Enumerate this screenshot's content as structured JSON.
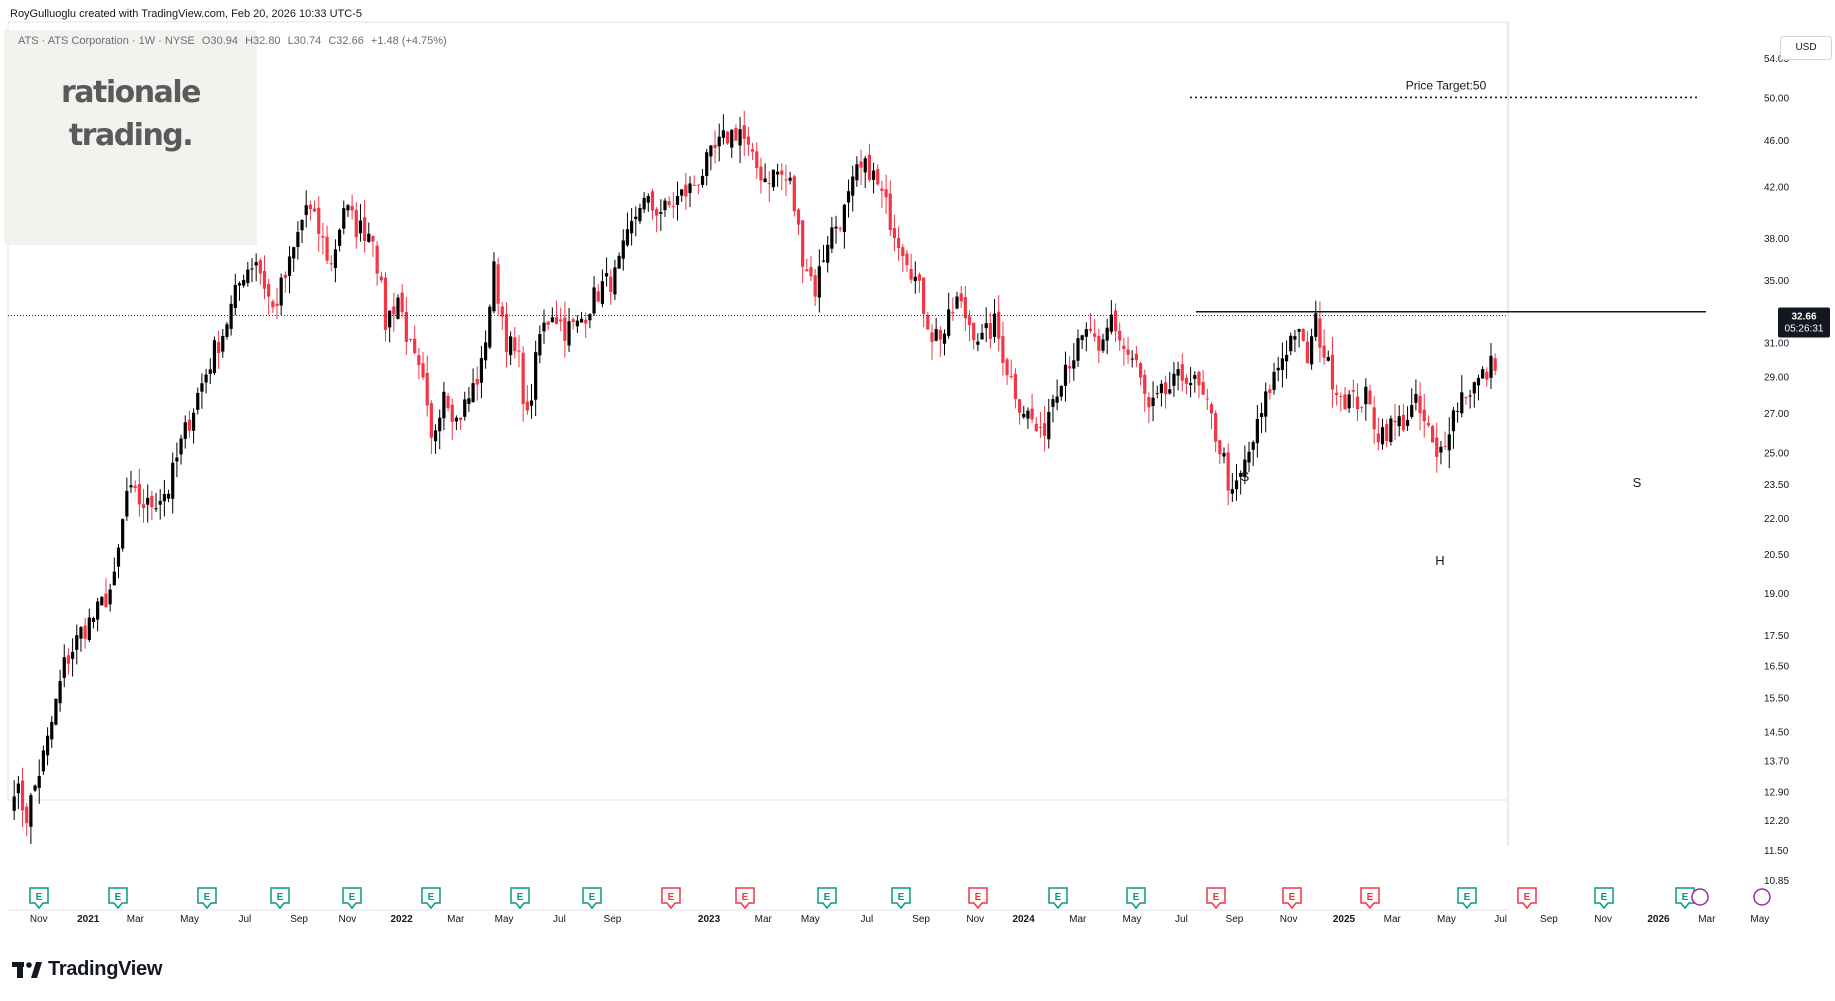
{
  "header": {
    "author_line": "RoyGulluoglu created with TradingView.com, Feb 20, 2026 10:33 UTC-5"
  },
  "symbol": {
    "description": "ATS · ATS Corporation · 1W · NYSE",
    "open": "O30.94",
    "high": "H32.80",
    "low": "L30.74",
    "close": "C32.66",
    "change": "+1.48 (+4.75%)"
  },
  "watermark": {
    "line1": "rationale",
    "line2": "trading."
  },
  "currency": "USD",
  "price_badge": {
    "price": "32.66",
    "countdown": "05:26:31"
  },
  "annotations": {
    "price_target": "Price Target:50",
    "left_shoulder": "S",
    "head": "H",
    "right_shoulder": "S"
  },
  "brand": {
    "name": "TradingView"
  },
  "colors": {
    "up": "#000000",
    "down": "#f23645",
    "earnings_green": "#089981",
    "earnings_red": "#f23645",
    "dividend": "#9c27b0",
    "grid": "#f0f3fa",
    "text": "#131722"
  },
  "chart_data": {
    "type": "candlestick",
    "yscale": "log",
    "ylim": [
      10.5,
      56
    ],
    "y_ticks": [
      "54.00",
      "50.00",
      "46.00",
      "42.00",
      "38.00",
      "35.00",
      "31.00",
      "29.00",
      "27.00",
      "25.00",
      "23.50",
      "22.00",
      "20.50",
      "19.00",
      "17.50",
      "16.50",
      "15.50",
      "14.50",
      "13.70",
      "12.90",
      "12.20",
      "11.50",
      "10.85"
    ],
    "x_ticks": [
      "Nov",
      "2021",
      "Mar",
      "May",
      "Jul",
      "Sep",
      "Nov",
      "2022",
      "Mar",
      "May",
      "Jul",
      "Sep",
      "2023",
      "Mar",
      "May",
      "Jul",
      "Sep",
      "Nov",
      "2024",
      "Mar",
      "May",
      "Jul",
      "Sep",
      "Nov",
      "2025",
      "Mar",
      "May",
      "Jul",
      "Sep",
      "Nov",
      "2026",
      "Mar",
      "May"
    ],
    "current_price": 32.66,
    "neckline": 32.9,
    "target": 50,
    "earnings_events": [
      "green",
      "green",
      "green",
      "green",
      "green",
      "green",
      "green",
      "green",
      "red",
      "red",
      "green",
      "green",
      "red",
      "green",
      "green",
      "red",
      "red",
      "red",
      "green",
      "red",
      "green",
      "green"
    ],
    "anchors": [
      [
        0,
        13.1
      ],
      [
        3,
        12.3
      ],
      [
        8,
        14.2
      ],
      [
        12,
        16.5
      ],
      [
        16,
        17.6
      ],
      [
        20,
        18.3
      ],
      [
        24,
        19.4
      ],
      [
        27,
        23.1
      ],
      [
        32,
        22.5
      ],
      [
        37,
        23.3
      ],
      [
        40,
        25.4
      ],
      [
        44,
        28.0
      ],
      [
        48,
        30.5
      ],
      [
        50,
        31.6
      ],
      [
        55,
        35.6
      ],
      [
        58,
        36.5
      ],
      [
        62,
        33.0
      ],
      [
        66,
        36.0
      ],
      [
        70,
        40.5
      ],
      [
        73,
        38.5
      ],
      [
        76,
        36.0
      ],
      [
        79,
        40.5
      ],
      [
        82,
        38.8
      ],
      [
        86,
        38.4
      ],
      [
        89,
        32.2
      ],
      [
        92,
        33.9
      ],
      [
        95,
        30.5
      ],
      [
        98,
        28.4
      ],
      [
        100,
        25.4
      ],
      [
        103,
        28.5
      ],
      [
        106,
        26.6
      ],
      [
        109,
        27.8
      ],
      [
        112,
        29.5
      ],
      [
        115,
        35.6
      ],
      [
        118,
        31.2
      ],
      [
        121,
        29.8
      ],
      [
        123,
        26.6
      ],
      [
        126,
        31.4
      ],
      [
        129,
        33.0
      ],
      [
        132,
        31.8
      ],
      [
        135,
        32.0
      ],
      [
        138,
        33.4
      ],
      [
        141,
        34.6
      ],
      [
        144,
        35.2
      ],
      [
        147,
        37.8
      ],
      [
        150,
        40.8
      ],
      [
        153,
        40.3
      ],
      [
        156,
        40.1
      ],
      [
        160,
        41.3
      ],
      [
        162,
        41.8
      ],
      [
        165,
        43.3
      ],
      [
        168,
        45.0
      ],
      [
        171,
        46.4
      ],
      [
        174,
        47.0
      ],
      [
        177,
        44.0
      ],
      [
        180,
        42.8
      ],
      [
        183,
        43.2
      ],
      [
        186,
        42.2
      ],
      [
        189,
        36.8
      ],
      [
        192,
        34.4
      ],
      [
        195,
        38.0
      ],
      [
        199,
        40.0
      ],
      [
        202,
        43.0
      ],
      [
        205,
        43.6
      ],
      [
        208,
        41.2
      ],
      [
        211,
        38.7
      ],
      [
        214,
        36.8
      ],
      [
        217,
        34.2
      ],
      [
        220,
        31.5
      ],
      [
        223,
        31.6
      ],
      [
        226,
        33.6
      ],
      [
        229,
        32.2
      ],
      [
        232,
        31.1
      ],
      [
        235,
        32.1
      ],
      [
        238,
        29.5
      ],
      [
        241,
        27.6
      ],
      [
        244,
        26.6
      ],
      [
        246,
        25.6
      ],
      [
        249,
        28.0
      ],
      [
        252,
        29.8
      ],
      [
        255,
        30.6
      ],
      [
        258,
        31.8
      ],
      [
        260,
        29.8
      ],
      [
        263,
        32.6
      ],
      [
        266,
        30.6
      ],
      [
        269,
        29.6
      ],
      [
        272,
        27.0
      ],
      [
        275,
        27.9
      ],
      [
        278,
        28.5
      ],
      [
        281,
        29.2
      ],
      [
        284,
        28.2
      ],
      [
        287,
        26.6
      ],
      [
        290,
        24.6
      ],
      [
        292,
        22.8
      ],
      [
        295,
        24.4
      ],
      [
        298,
        26.2
      ],
      [
        301,
        28.4
      ],
      [
        304,
        30.2
      ],
      [
        307,
        31.8
      ],
      [
        310,
        30.0
      ],
      [
        312,
        32.2
      ],
      [
        315,
        29.5
      ],
      [
        318,
        28.0
      ],
      [
        321,
        27.6
      ],
      [
        324,
        27.8
      ],
      [
        327,
        26.0
      ],
      [
        330,
        26.3
      ],
      [
        333,
        26.6
      ],
      [
        336,
        27.4
      ],
      [
        339,
        26.0
      ],
      [
        341,
        24.5
      ],
      [
        344,
        26.5
      ],
      [
        347,
        28.0
      ],
      [
        350,
        28.5
      ],
      [
        353,
        29.2
      ],
      [
        356,
        30.4
      ],
      [
        359,
        31.8
      ],
      [
        361,
        32.8
      ]
    ]
  }
}
